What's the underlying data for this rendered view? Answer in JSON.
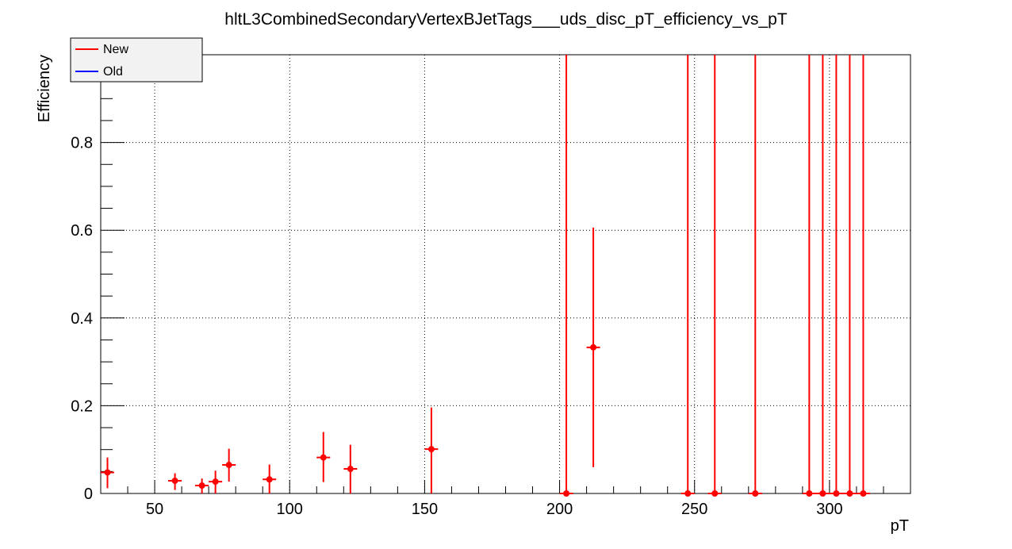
{
  "chart_data": {
    "type": "scatter",
    "title": "hltL3CombinedSecondaryVertexBJetTags___uds_disc_pT_efficiency_vs_pT",
    "xlabel": "pT",
    "ylabel": "Efficiency",
    "xlim": [
      30,
      330
    ],
    "ylim": [
      0,
      1
    ],
    "grid": true,
    "legend_position": "top-left",
    "x_ticks": [
      {
        "value": 50,
        "label": "50"
      },
      {
        "value": 100,
        "label": "100"
      },
      {
        "value": 150,
        "label": "150"
      },
      {
        "value": 200,
        "label": "200"
      },
      {
        "value": 250,
        "label": "250"
      },
      {
        "value": 300,
        "label": "300"
      }
    ],
    "y_ticks": [
      {
        "value": 0,
        "label": "0"
      },
      {
        "value": 0.2,
        "label": "0.2"
      },
      {
        "value": 0.4,
        "label": "0.4"
      },
      {
        "value": 0.6,
        "label": "0.6"
      },
      {
        "value": 0.8,
        "label": "0.8"
      }
    ],
    "series": [
      {
        "name": "New",
        "color": "#ff0000",
        "points": [
          {
            "x": 32.5,
            "xerr": 2.5,
            "y": 0.048,
            "ylo": 0.012,
            "yhi": 0.082
          },
          {
            "x": 57.5,
            "xerr": 2.5,
            "y": 0.029,
            "ylo": 0.008,
            "yhi": 0.046
          },
          {
            "x": 67.5,
            "xerr": 2.5,
            "y": 0.018,
            "ylo": 0.0,
            "yhi": 0.034
          },
          {
            "x": 72.5,
            "xerr": 2.5,
            "y": 0.027,
            "ylo": 0.0,
            "yhi": 0.052
          },
          {
            "x": 77.5,
            "xerr": 2.5,
            "y": 0.065,
            "ylo": 0.027,
            "yhi": 0.102
          },
          {
            "x": 92.5,
            "xerr": 2.5,
            "y": 0.032,
            "ylo": 0.0,
            "yhi": 0.066
          },
          {
            "x": 112.5,
            "xerr": 2.5,
            "y": 0.082,
            "ylo": 0.026,
            "yhi": 0.14
          },
          {
            "x": 122.5,
            "xerr": 2.5,
            "y": 0.056,
            "ylo": 0.0,
            "yhi": 0.111
          },
          {
            "x": 152.5,
            "xerr": 2.5,
            "y": 0.101,
            "ylo": 0.0,
            "yhi": 0.196
          },
          {
            "x": 202.5,
            "xerr": 2.5,
            "y": 0.0,
            "ylo": 0.0,
            "yhi": 1.0
          },
          {
            "x": 212.5,
            "xerr": 2.5,
            "y": 0.333,
            "ylo": 0.06,
            "yhi": 0.606
          },
          {
            "x": 247.5,
            "xerr": 2.5,
            "y": 0.0,
            "ylo": 0.0,
            "yhi": 1.0
          },
          {
            "x": 257.5,
            "xerr": 2.5,
            "y": 0.0,
            "ylo": 0.0,
            "yhi": 1.0
          },
          {
            "x": 272.5,
            "xerr": 2.5,
            "y": 0.0,
            "ylo": 0.0,
            "yhi": 1.0
          },
          {
            "x": 292.5,
            "xerr": 2.5,
            "y": 0.0,
            "ylo": 0.0,
            "yhi": 1.0
          },
          {
            "x": 297.5,
            "xerr": 2.5,
            "y": 0.0,
            "ylo": 0.0,
            "yhi": 1.0
          },
          {
            "x": 302.5,
            "xerr": 2.5,
            "y": 0.0,
            "ylo": 0.0,
            "yhi": 1.0
          },
          {
            "x": 307.5,
            "xerr": 2.5,
            "y": 0.0,
            "ylo": 0.0,
            "yhi": 1.0
          },
          {
            "x": 312.5,
            "xerr": 2.5,
            "y": 0.0,
            "ylo": 0.0,
            "yhi": 1.0
          }
        ]
      },
      {
        "name": "Old",
        "color": "#0000ff",
        "points": []
      }
    ]
  }
}
